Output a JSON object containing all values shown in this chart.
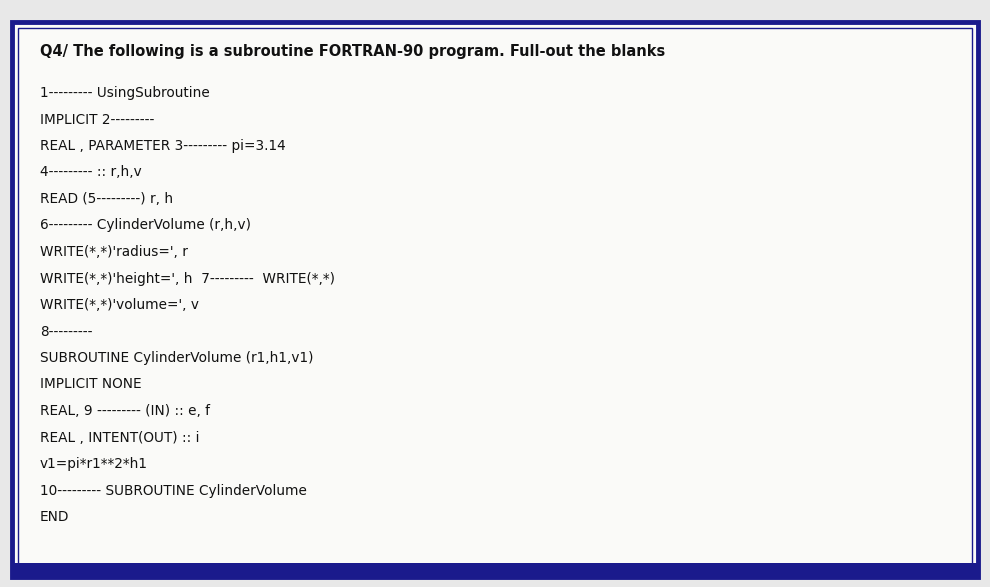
{
  "bg_color": "#e8e8e8",
  "outer_border_color": "#1a1a8c",
  "inner_border_color": "#1a1a8c",
  "bottom_bar_color": "#1a1a8c",
  "title": "Q4/ The following is a subroutine FORTRAN-90 program. Full-out the blanks",
  "title_fontsize": 10.5,
  "title_bold": true,
  "code_lines": [
    "1--------- UsingSubroutine",
    "IMPLICIT 2---------",
    "REAL , PARAMETER 3--------- pi=3.14",
    "4--------- :: r,h,v",
    "READ (5---------) r, h",
    "6--------- CylinderVolume (r,h,v)",
    "WRITE(*,*)'radius=', r",
    "WRITE(*,*)'height=', h  7---------  WRITE(*,*)",
    "WRITE(*,*)'volume=', v",
    "8---------",
    "SUBROUTINE CylinderVolume (r1,h1,v1)",
    "IMPLICIT NONE",
    "REAL, 9 --------- (IN) :: e, f",
    "REAL , INTENT(OUT) :: i",
    "v1=pi*r1**2*h1",
    "10--------- SUBROUTINE CylinderVolume",
    "END"
  ],
  "code_fontsize": 9.8,
  "text_color": "#111111",
  "box_fill": "#fafaf8",
  "figsize": [
    9.9,
    5.87
  ],
  "dpi": 100
}
